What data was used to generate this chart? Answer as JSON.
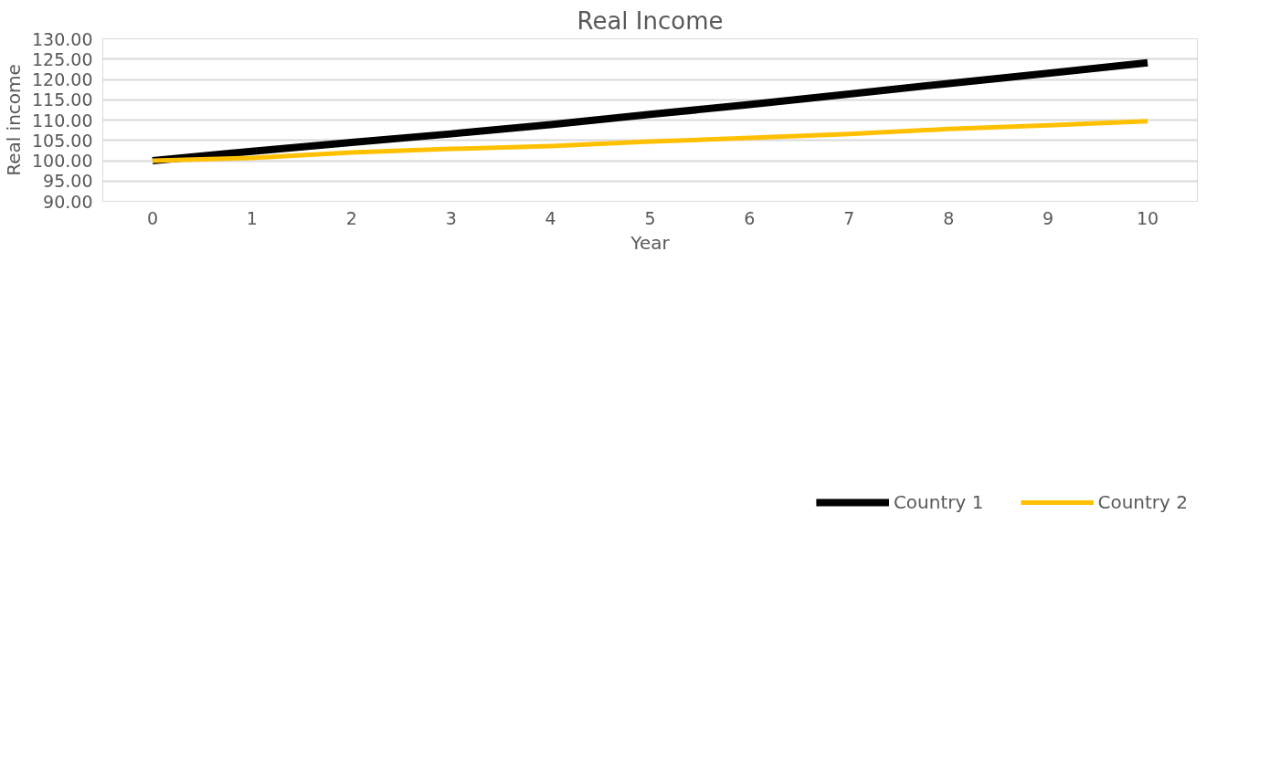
{
  "chart_data": {
    "type": "line",
    "title": "Real Income",
    "xlabel": "Year",
    "ylabel": "Real income",
    "categories": [
      "0",
      "1",
      "2",
      "3",
      "4",
      "5",
      "6",
      "7",
      "8",
      "9",
      "10"
    ],
    "series": [
      {
        "name": "Country 1",
        "color": "#000000",
        "values": [
          100.0,
          102.3,
          104.5,
          106.6,
          108.9,
          111.4,
          113.8,
          116.4,
          119.0,
          121.5,
          124.1
        ]
      },
      {
        "name": "Country 2",
        "color": "#ffc000",
        "values": [
          100.0,
          100.7,
          102.0,
          102.9,
          103.6,
          104.7,
          105.6,
          106.6,
          107.8,
          108.7,
          109.7
        ]
      }
    ],
    "ylim": [
      90,
      130
    ],
    "yticks": [
      {
        "value": 90,
        "label": "90.00"
      },
      {
        "value": 95,
        "label": "95.00"
      },
      {
        "value": 100,
        "label": "100.00"
      },
      {
        "value": 105,
        "label": "105.00"
      },
      {
        "value": 110,
        "label": "110.00"
      },
      {
        "value": 115,
        "label": "115.00"
      },
      {
        "value": 120,
        "label": "120.00"
      },
      {
        "value": 125,
        "label": "125.00"
      },
      {
        "value": 130,
        "label": "130.00"
      }
    ],
    "grid": "y",
    "legend": "bottom",
    "marker": "none",
    "line_style": "solid"
  }
}
